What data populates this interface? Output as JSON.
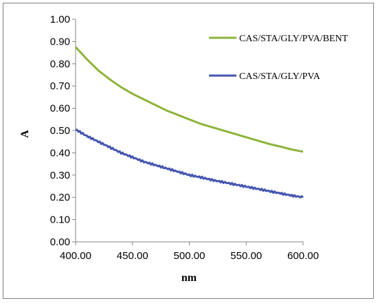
{
  "chart_data": {
    "type": "line",
    "title": "",
    "xlabel": "nm",
    "ylabel": "A",
    "xlim": [
      400,
      600
    ],
    "ylim": [
      0,
      1
    ],
    "x_ticks": [
      "400.00",
      "450.00",
      "500.00",
      "550.00",
      "600.00"
    ],
    "y_ticks": [
      "0.00",
      "0.10",
      "0.20",
      "0.30",
      "0.40",
      "0.50",
      "0.60",
      "0.70",
      "0.80",
      "0.90",
      "1.00"
    ],
    "grid": false,
    "legend_position": "top-right",
    "x": [
      400,
      410,
      420,
      430,
      440,
      450,
      460,
      470,
      480,
      490,
      500,
      510,
      520,
      530,
      540,
      550,
      560,
      570,
      580,
      590,
      600
    ],
    "series": [
      {
        "name": "CAS/STA/GLY/PVA/BENT",
        "color": "#8db33a",
        "values": [
          0.875,
          0.82,
          0.77,
          0.73,
          0.695,
          0.665,
          0.64,
          0.615,
          0.59,
          0.57,
          0.55,
          0.53,
          0.515,
          0.5,
          0.485,
          0.47,
          0.455,
          0.44,
          0.428,
          0.415,
          0.405
        ]
      },
      {
        "name": "CAS/STA/GLY/PVA",
        "color": "#4355b0",
        "values": [
          0.505,
          0.475,
          0.45,
          0.425,
          0.4,
          0.38,
          0.36,
          0.345,
          0.33,
          0.315,
          0.3,
          0.29,
          0.278,
          0.268,
          0.258,
          0.248,
          0.238,
          0.228,
          0.218,
          0.208,
          0.2
        ]
      }
    ]
  }
}
